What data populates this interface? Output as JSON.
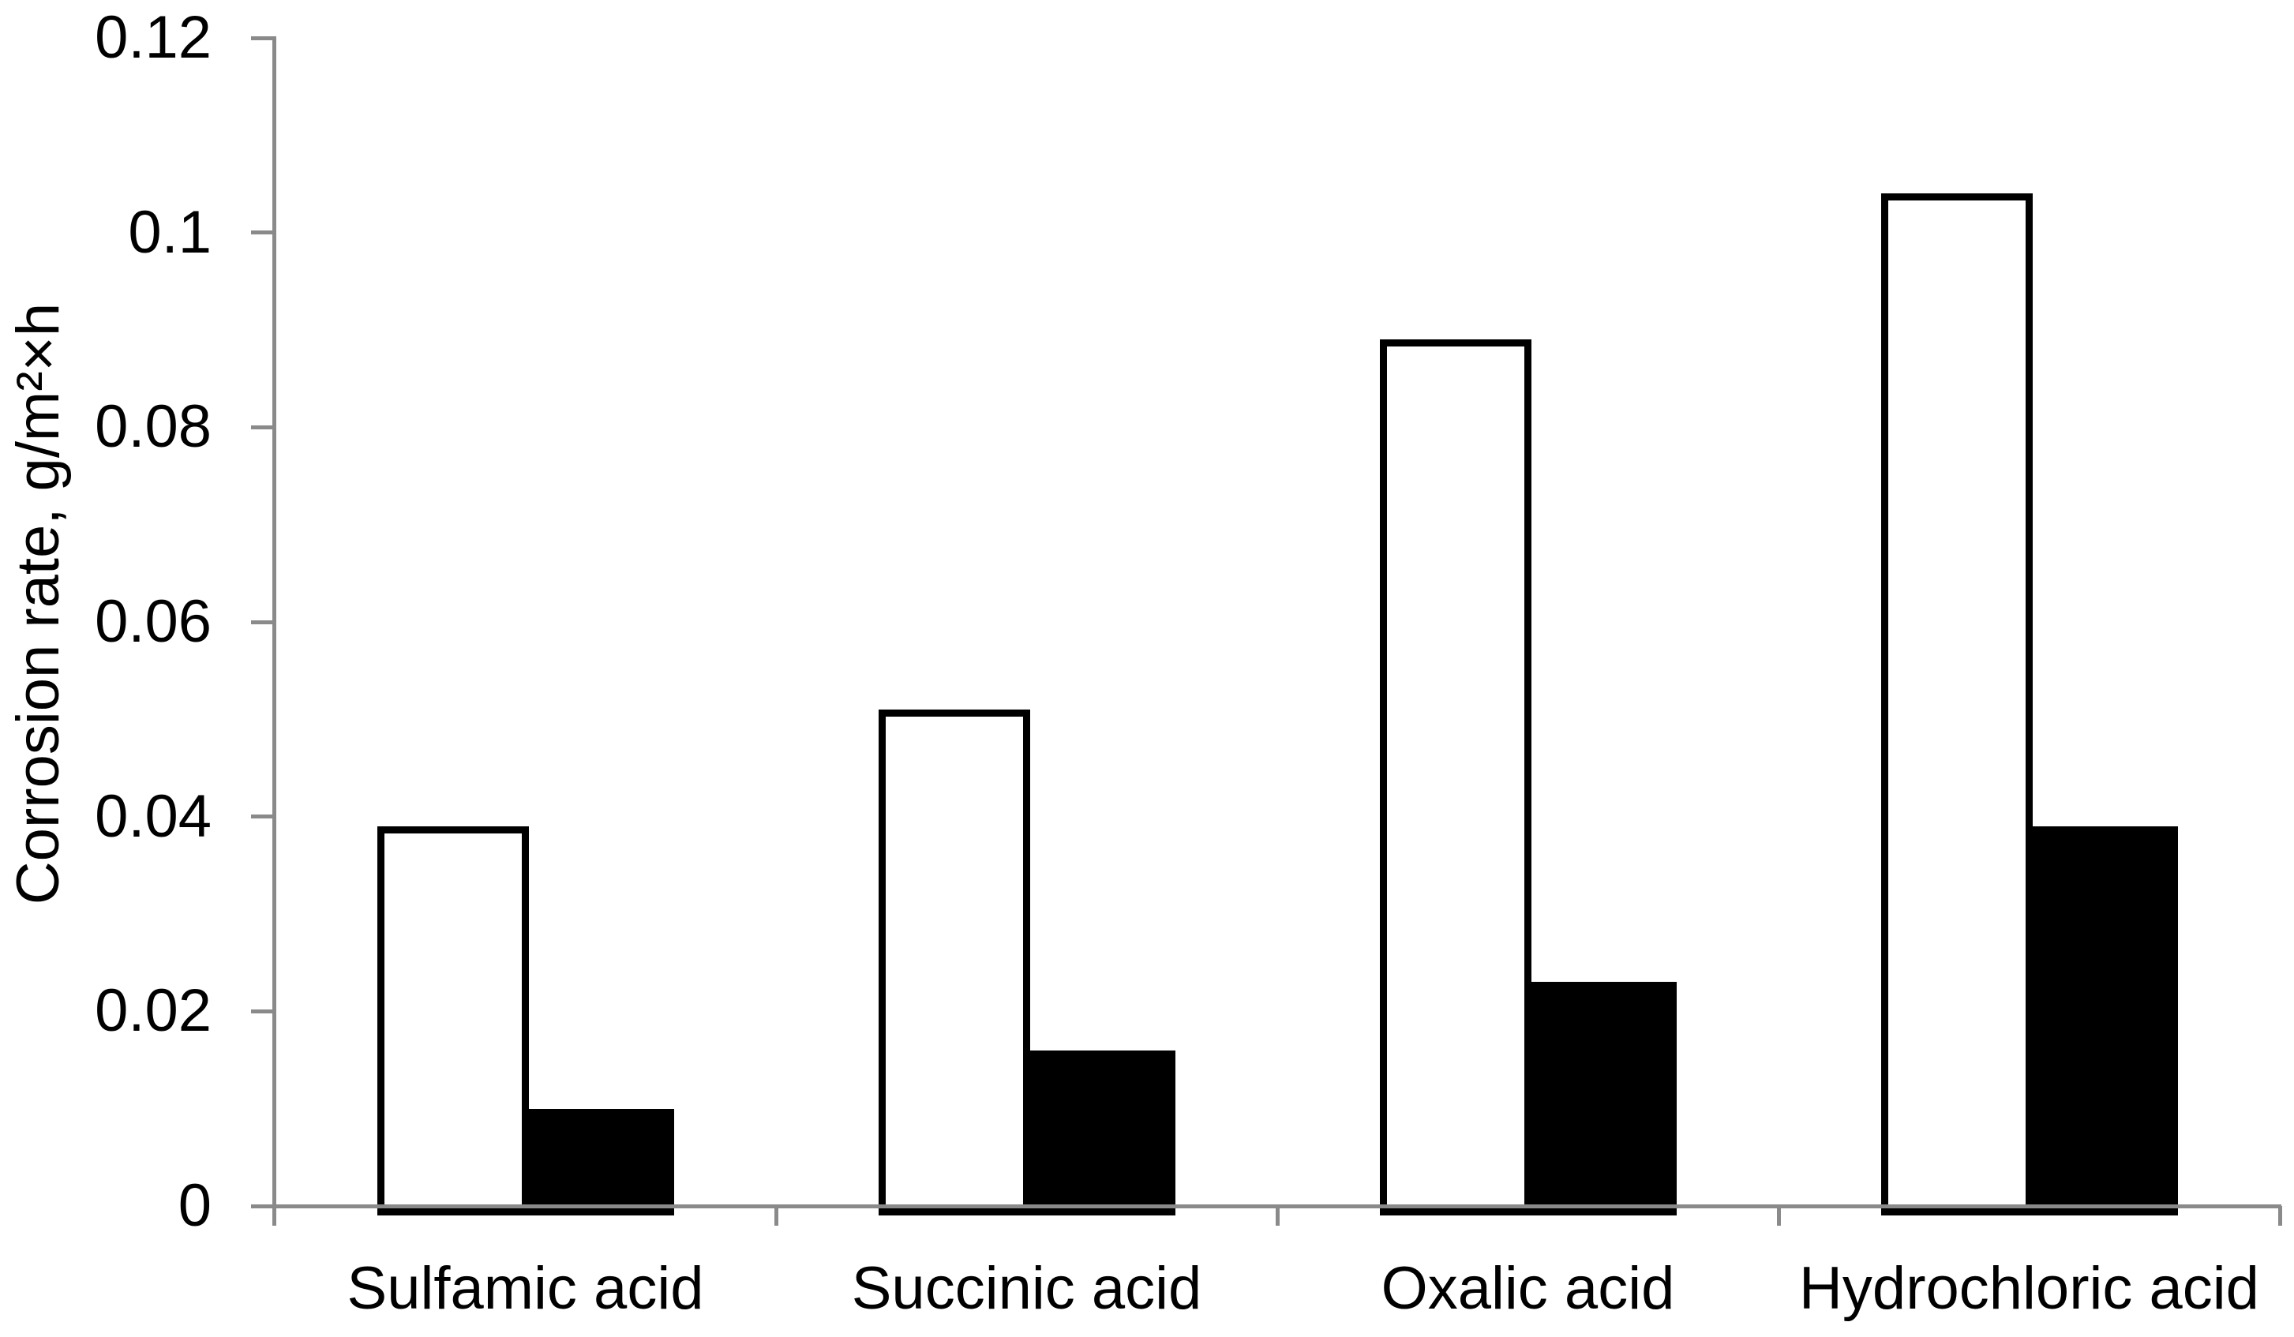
{
  "chart_data": {
    "type": "bar",
    "title": "",
    "ylabel": "Corrosion rate, g/m²×h",
    "xlabel": "",
    "categories": [
      "Sulfamic acid",
      "Succinic acid",
      "Oxalic acid",
      "Hydrochloric acid"
    ],
    "series": [
      {
        "name": "white-bars",
        "fill": "#ffffff",
        "border": "#000000",
        "values": [
          0.039,
          0.051,
          0.089,
          0.104
        ]
      },
      {
        "name": "black-bars",
        "fill": "#000000",
        "border": "#000000",
        "values": [
          0.01,
          0.016,
          0.023,
          0.039
        ]
      }
    ],
    "ylim": [
      0,
      0.12
    ],
    "ytick_interval": 0.02,
    "ytick_labels": [
      "0",
      "0.02",
      "0.04",
      "0.06",
      "0.08",
      "0.1",
      "0.12"
    ],
    "grid": false,
    "legend": false,
    "axis_color": "#8a8a8a",
    "text_color": "#000000",
    "background_color": "#ffffff"
  }
}
